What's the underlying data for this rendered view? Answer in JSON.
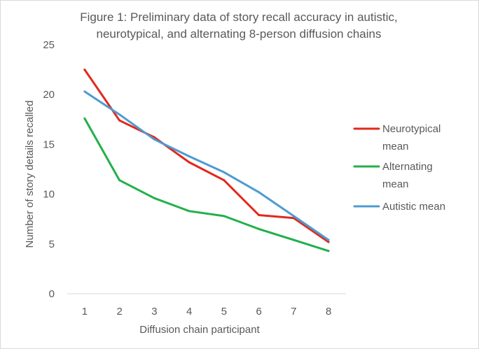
{
  "chart_data": {
    "type": "line",
    "title_lines": [
      "Figure 1: Preliminary data of story recall accuracy in autistic,",
      "neurotypical, and alternating 8-person diffusion chains"
    ],
    "xlabel": "Diffusion chain participant",
    "ylabel": "Number of story details recalled",
    "categories": [
      "1",
      "2",
      "3",
      "4",
      "5",
      "6",
      "7",
      "8"
    ],
    "y_ticks": [
      "0",
      "5",
      "10",
      "15",
      "20",
      "25"
    ],
    "ylim": [
      0,
      25
    ],
    "grid": false,
    "legend_position": "right",
    "series": [
      {
        "name": "Neurotypical mean",
        "legend_lines": [
          "Neurotypical",
          "mean"
        ],
        "color": "#e2281b",
        "values": [
          22.5,
          17.4,
          15.7,
          13.2,
          11.4,
          7.9,
          7.6,
          5.2
        ]
      },
      {
        "name": "Alternating mean",
        "legend_lines": [
          "Alternating",
          "mean"
        ],
        "color": "#22b04a",
        "values": [
          17.6,
          11.4,
          9.6,
          8.3,
          7.8,
          6.5,
          5.4,
          4.3
        ]
      },
      {
        "name": "Autistic mean",
        "legend_lines": [
          "Autistic mean"
        ],
        "color": "#4e9bd1",
        "values": [
          20.3,
          18.0,
          15.5,
          13.8,
          12.2,
          10.2,
          7.8,
          5.4
        ]
      }
    ]
  }
}
